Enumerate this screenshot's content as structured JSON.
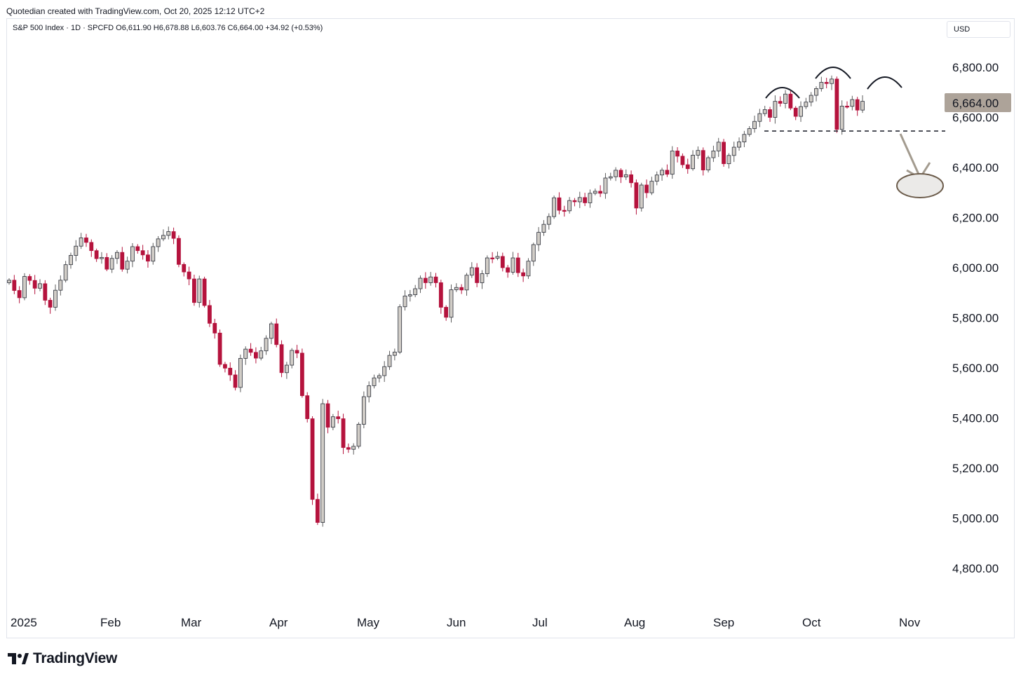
{
  "header": {
    "attribution": "Quotedian created with TradingView.com, Oct 20, 2025 12:12 UTC+2"
  },
  "legend": {
    "text": "S&P 500 Index · 1D · SPCFD  O6,611.90  H6,678.88  L6,603.76  C6,664.00  +34.92 (+0.53%)"
  },
  "currency": "USD",
  "last_price_label": "6,664.00",
  "footer": {
    "brand": "TradingView"
  },
  "colors": {
    "up_fill": "#d1cdc7",
    "down_fill": "#b5133d",
    "badge": "#ada399",
    "arrow": "#a39b8f"
  },
  "chart_data": {
    "type": "candlestick",
    "symbol": "S&P 500 Index",
    "interval": "1D",
    "y_axis": {
      "ticks": [
        4800,
        5000,
        5200,
        5400,
        5600,
        5800,
        6000,
        6200,
        6400,
        6600,
        6800
      ],
      "tick_labels": [
        "4,800.00",
        "5,000.00",
        "5,200.00",
        "5,400.00",
        "5,600.00",
        "5,800.00",
        "6,000.00",
        "6,200.00",
        "6,400.00",
        "6,600.00",
        "6,800.00"
      ],
      "range": [
        4680,
        6910
      ],
      "position": "right"
    },
    "x_axis": {
      "labels": [
        "2025",
        "Feb",
        "Mar",
        "Apr",
        "May",
        "Jun",
        "Jul",
        "Aug",
        "Sep",
        "Oct",
        "Nov"
      ]
    },
    "last_close": 6664.0,
    "neckline": 6550,
    "pattern": "head-and-shoulders",
    "target_zone": 6320,
    "closes": [
      5950,
      5909,
      5880,
      5965,
      5949,
      5918,
      5936,
      5870,
      5842,
      5910,
      5950,
      6012,
      6049,
      6086,
      6119,
      6101,
      6068,
      6036,
      6041,
      5994,
      6037,
      6061,
      5994,
      6026,
      6084,
      6068,
      6051,
      6026,
      6084,
      6115,
      6129,
      6144,
      6117,
      6013,
      5983,
      5955,
      5861,
      5955,
      5849,
      5778,
      5739,
      5614,
      5599,
      5572,
      5522,
      5638,
      5675,
      5662,
      5639,
      5668,
      5718,
      5776,
      5693,
      5581,
      5611,
      5670,
      5659,
      5489,
      5397,
      5075,
      4983,
      5457,
      5363,
      5405,
      5397,
      5282,
      5275,
      5287,
      5375,
      5485,
      5529,
      5560,
      5569,
      5605,
      5650,
      5663,
      5844,
      5887,
      5892,
      5916,
      5958,
      5940,
      5963,
      5940,
      5842,
      5802,
      5912,
      5921,
      5911,
      5970,
      6000,
      5940,
      5976,
      6039,
      6038,
      6045,
      6000,
      5982,
      6039,
      5980,
      5967,
      6026,
      6092,
      6141,
      6173,
      6204,
      6279,
      6229,
      6227,
      6268,
      6263,
      6280,
      6259,
      6297,
      6305,
      6297,
      6358,
      6363,
      6389,
      6362,
      6371,
      6339,
      6238,
      6330,
      6299,
      6345,
      6370,
      6389,
      6373,
      6466,
      6445,
      6411,
      6395,
      6449,
      6468,
      6390,
      6439,
      6466,
      6501,
      6415,
      6448,
      6481,
      6502,
      6532,
      6555,
      6584,
      6615,
      6631,
      6600,
      6664,
      6656,
      6693,
      6637,
      6604,
      6643,
      6661,
      6688,
      6715,
      6740,
      6735,
      6753,
      6552,
      6645,
      6644,
      6671,
      6629,
      6664
    ],
    "timeframe": "2025-01-02 to 2025-10-20"
  }
}
